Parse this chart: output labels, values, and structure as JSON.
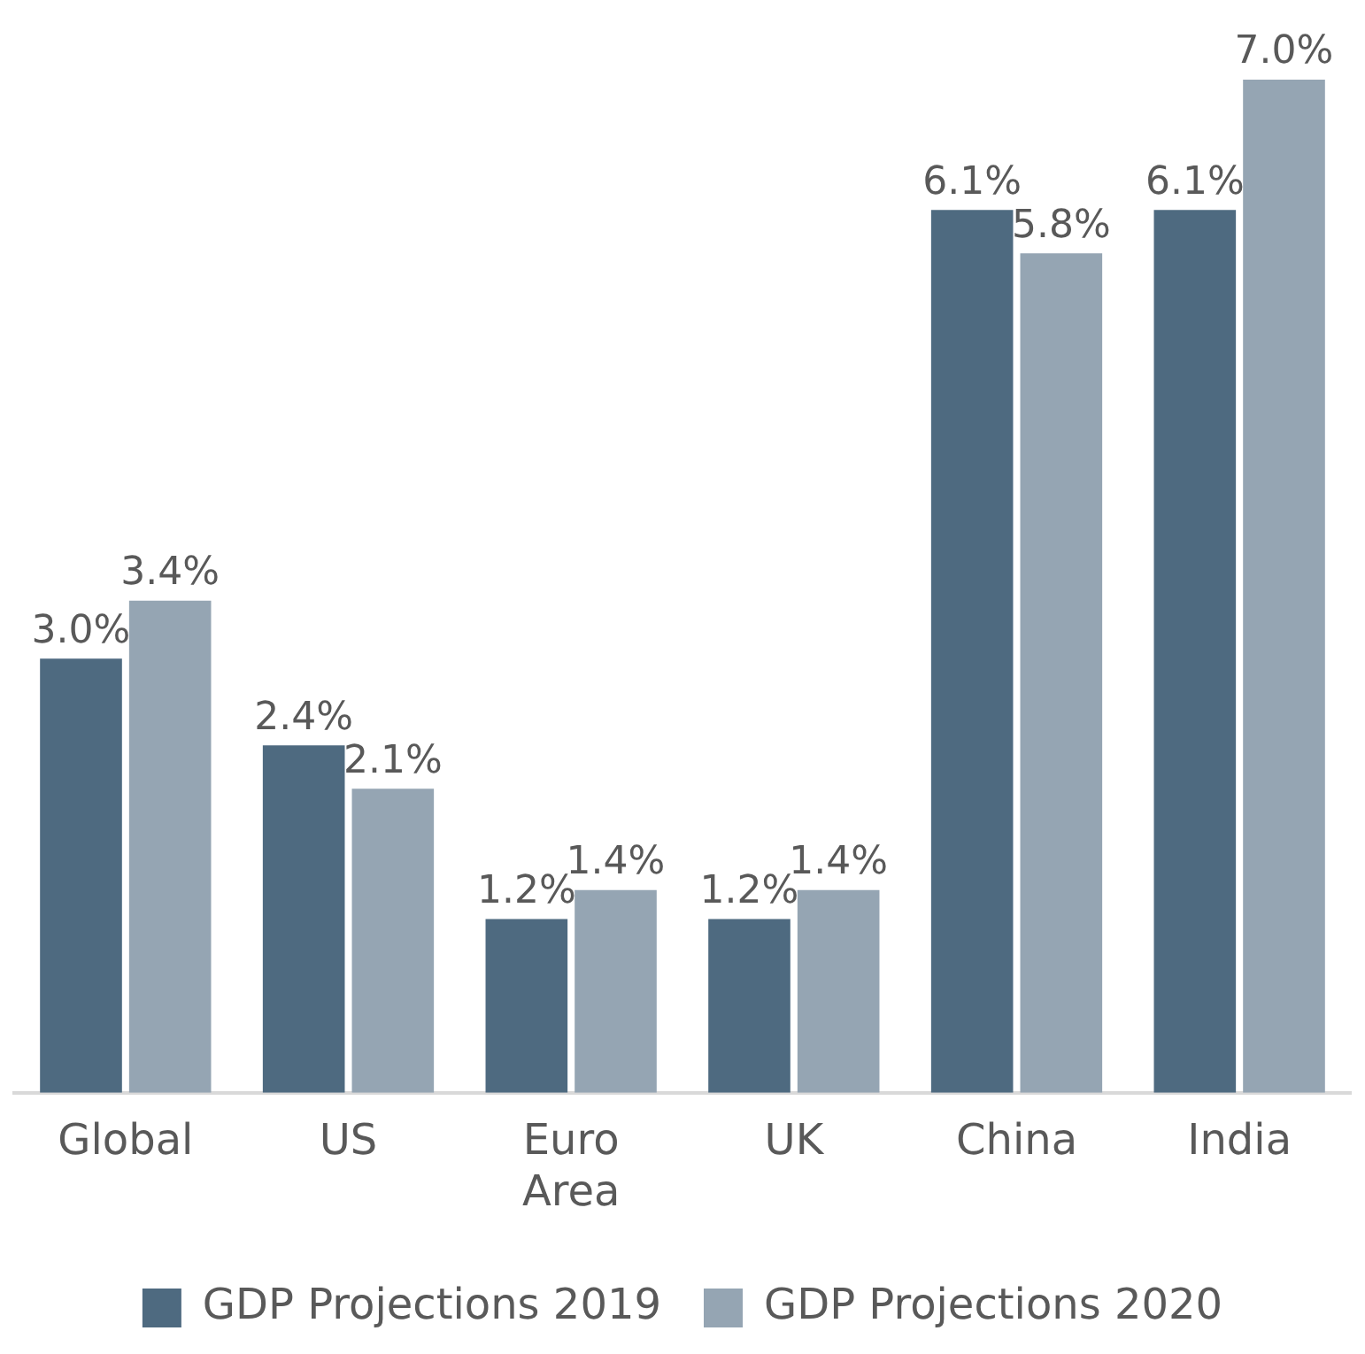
{
  "chart_data": {
    "type": "bar",
    "categories": [
      "Global",
      "US",
      "Euro Area",
      "UK",
      "China",
      "India"
    ],
    "series": [
      {
        "name": "GDP Projections 2019",
        "color": "#4e6a80",
        "values": [
          3.0,
          2.4,
          1.2,
          1.2,
          6.1,
          6.1
        ],
        "value_labels": [
          "3.0%",
          "2.4%",
          "1.2%",
          "1.2%",
          "6.1%",
          "6.1%"
        ]
      },
      {
        "name": "GDP Projections 2020",
        "color": "#95a5b3",
        "values": [
          3.4,
          2.1,
          1.4,
          1.4,
          5.8,
          7.0
        ],
        "value_labels": [
          "3.4%",
          "2.1%",
          "1.4%",
          "1.4%",
          "5.8%",
          "7.0%"
        ]
      }
    ],
    "tick_labels": "x",
    "grid": false,
    "legend": "bottom"
  }
}
